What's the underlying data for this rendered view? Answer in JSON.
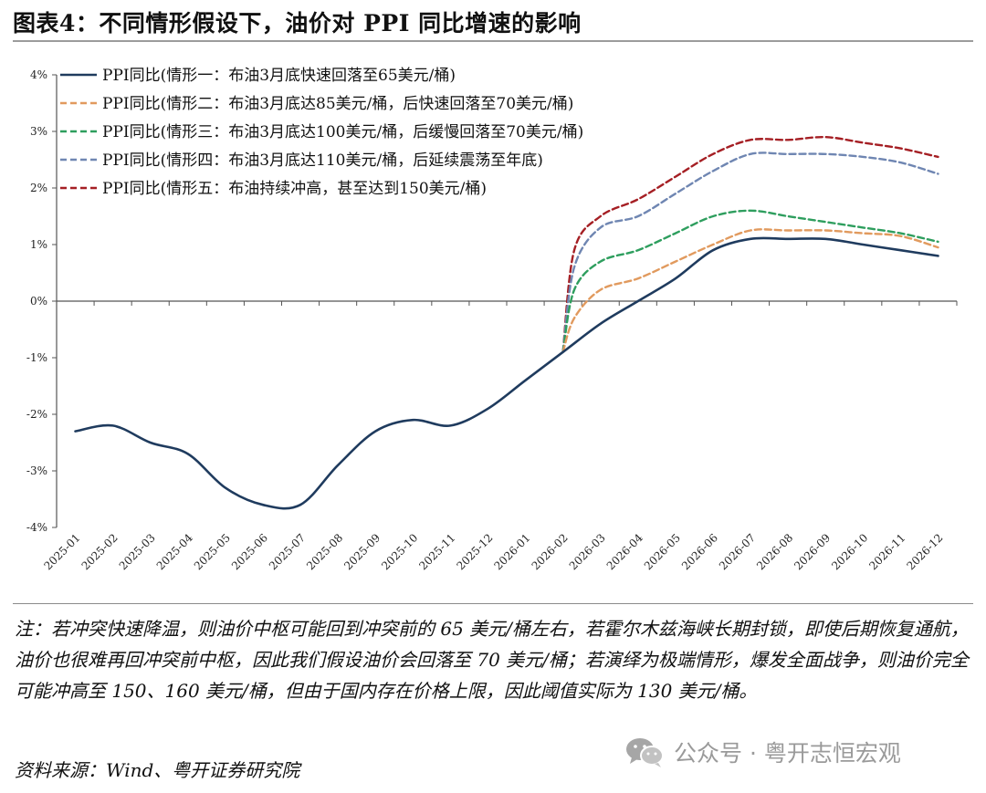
{
  "title": "图表4：不同情形假设下，油价对 PPI 同比增速的影响",
  "note": "注：若冲突快速降温，则油价中枢可能回到冲突前的 65 美元/桶左右，若霍尔木兹海峡长期封锁，即使后期恢复通航，油价也很难再回冲突前中枢，因此我们假设油价会回落至 70 美元/桶；若演绎为极端情形，爆发全面战争，则油价完全可能冲高至 150、160 美元/桶，但由于国内存在价格上限，因此阈值实际为 130 美元/桶。",
  "source": "资料来源：Wind、粤开证券研究院",
  "watermark": {
    "text": "公众号 · 粤开志恒宏观",
    "icon": "wechat-icon"
  },
  "chart_data": {
    "type": "line",
    "title": "",
    "xlabel": "",
    "ylabel": "",
    "ylim": [
      -4,
      4
    ],
    "yticks": [
      -4,
      -3,
      -2,
      -1,
      0,
      1,
      2,
      3,
      4
    ],
    "ytick_labels": [
      "-4%",
      "-3%",
      "-2%",
      "-1%",
      "0%",
      "1%",
      "2%",
      "3%",
      "4%"
    ],
    "categories": [
      "2025-01",
      "2025-02",
      "2025-03",
      "2025-04",
      "2025-05",
      "2025-06",
      "2025-07",
      "2025-08",
      "2025-09",
      "2025-10",
      "2025-11",
      "2025-12",
      "2026-01",
      "2026-02",
      "2026-03",
      "2026-04",
      "2026-05",
      "2026-06",
      "2026-07",
      "2026-08",
      "2026-09",
      "2026-10",
      "2026-11",
      "2026-12"
    ],
    "legend_position": "top-left",
    "grid": false,
    "series": [
      {
        "name": "PPI同比(情形一：布油3月底快速回落至65美元/桶)",
        "color": "#1f3b5e",
        "dash": "solid",
        "x": [
          0,
          1,
          2,
          3,
          4,
          5,
          6,
          7,
          8,
          9,
          10,
          11,
          12,
          13,
          14,
          15,
          16,
          17,
          18,
          19,
          20,
          21,
          22,
          23
        ],
        "values": [
          -2.3,
          -2.2,
          -2.5,
          -2.7,
          -3.3,
          -3.6,
          -3.6,
          -2.9,
          -2.3,
          -2.1,
          -2.2,
          -1.9,
          -1.4,
          -0.9,
          -0.4,
          0.0,
          0.4,
          0.9,
          1.1,
          1.1,
          1.1,
          1.0,
          0.9,
          0.8
        ]
      },
      {
        "name": "PPI同比(情形二：布油3月底达85美元/桶，后快速回落至70美元/桶)",
        "color": "#e19a5e",
        "dash": "dashed",
        "x": [
          13,
          13.3,
          14,
          15,
          16,
          17,
          18,
          19,
          20,
          21,
          22,
          23
        ],
        "values": [
          -0.9,
          -0.3,
          0.2,
          0.4,
          0.7,
          1.0,
          1.25,
          1.25,
          1.25,
          1.2,
          1.15,
          0.95
        ]
      },
      {
        "name": "PPI同比(情形三：布油3月底达100美元/桶，后缓慢回落至70美元/桶)",
        "color": "#2e9e5e",
        "dash": "dashed",
        "x": [
          13,
          13.3,
          14,
          15,
          16,
          17,
          18,
          19,
          20,
          21,
          22,
          23
        ],
        "values": [
          -0.9,
          0.2,
          0.7,
          0.9,
          1.2,
          1.5,
          1.6,
          1.5,
          1.4,
          1.3,
          1.2,
          1.05
        ]
      },
      {
        "name": "PPI同比(情形四：布油3月底达110美元/桶，后延续震荡至年底)",
        "color": "#6f86b2",
        "dash": "dashed",
        "x": [
          13,
          13.3,
          14,
          15,
          16,
          17,
          18,
          19,
          20,
          21,
          22,
          23
        ],
        "values": [
          -0.9,
          0.6,
          1.3,
          1.5,
          1.9,
          2.3,
          2.6,
          2.6,
          2.6,
          2.55,
          2.45,
          2.25
        ]
      },
      {
        "name": "PPI同比(情形五：布油持续冲高，甚至达到150美元/桶)",
        "color": "#a51f24",
        "dash": "dashed",
        "x": [
          13,
          13.3,
          14,
          15,
          16,
          17,
          18,
          19,
          20,
          21,
          22,
          23
        ],
        "values": [
          -0.9,
          0.9,
          1.5,
          1.8,
          2.2,
          2.6,
          2.85,
          2.85,
          2.9,
          2.8,
          2.7,
          2.55
        ]
      }
    ]
  }
}
